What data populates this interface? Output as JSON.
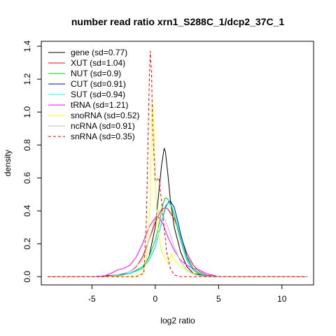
{
  "chart_data": {
    "type": "line",
    "title": "number read ratio xrn1_S288C_1/dcp2_37C_1",
    "xlabel": "log2 ratio",
    "ylabel": "density",
    "xlim": [
      -9,
      12.5
    ],
    "ylim": [
      -0.05,
      1.43
    ],
    "x_ticks": [
      -5,
      0,
      5,
      10
    ],
    "x_tick_labels": [
      "-5",
      "0",
      "5",
      "10"
    ],
    "y_ticks": [
      0.0,
      0.2,
      0.4,
      0.6,
      0.8,
      1.0,
      1.2,
      1.4
    ],
    "y_tick_labels": [
      "0.0",
      "0.2",
      "0.4",
      "0.6",
      "0.8",
      "1.0",
      "1.2",
      "1.4"
    ],
    "grid": false,
    "legend_position": "top-left",
    "curve_range": [
      -8.5,
      12.0
    ],
    "series": [
      {
        "name": "gene (sd=0.77)",
        "color": "#000000",
        "dash": "solid",
        "x": [
          -5,
          -4,
          -3,
          -2,
          -1,
          -0.5,
          0,
          0.5,
          0.7,
          0.8,
          1.0,
          1.2,
          1.5,
          2.0,
          2.5,
          3.0,
          4.0,
          5.0
        ],
        "y": [
          0,
          0.005,
          0.01,
          0.02,
          0.05,
          0.12,
          0.3,
          0.68,
          0.78,
          0.76,
          0.62,
          0.46,
          0.3,
          0.15,
          0.06,
          0.02,
          0.005,
          0
        ]
      },
      {
        "name": "XUT (sd=1.04)",
        "color": "#ff0000",
        "dash": "solid",
        "x": [
          -4,
          -3,
          -2,
          -1.5,
          -1,
          -0.5,
          0,
          0.5,
          0.8,
          1.0,
          1.5,
          2.0,
          2.5,
          3.0,
          3.5,
          4.0,
          5.0
        ],
        "y": [
          0,
          0.01,
          0.03,
          0.06,
          0.12,
          0.22,
          0.33,
          0.41,
          0.42,
          0.41,
          0.35,
          0.25,
          0.14,
          0.07,
          0.03,
          0.01,
          0
        ]
      },
      {
        "name": "NUT (sd=0.9)",
        "color": "#00cc00",
        "dash": "solid",
        "x": [
          -4,
          -3,
          -2,
          -1,
          -0.5,
          0,
          0.3,
          0.6,
          0.8,
          1.0,
          1.3,
          1.6,
          2.0,
          2.5,
          3.0,
          3.5,
          4.0,
          5.0
        ],
        "y": [
          0,
          0.005,
          0.02,
          0.06,
          0.12,
          0.22,
          0.32,
          0.44,
          0.48,
          0.47,
          0.42,
          0.34,
          0.22,
          0.1,
          0.04,
          0.015,
          0.005,
          0
        ]
      },
      {
        "name": "CUT (sd=0.91)",
        "color": "#0000cc",
        "dash": "solid",
        "x": [
          -4,
          -3,
          -2,
          -1,
          -0.5,
          0,
          0.4,
          0.8,
          1.0,
          1.2,
          1.5,
          1.8,
          2.0,
          2.5,
          3.0,
          3.5,
          4.0,
          5.0
        ],
        "y": [
          0,
          0.005,
          0.02,
          0.05,
          0.1,
          0.18,
          0.3,
          0.42,
          0.45,
          0.46,
          0.42,
          0.33,
          0.26,
          0.12,
          0.05,
          0.02,
          0.005,
          0
        ]
      },
      {
        "name": "SUT (sd=0.94)",
        "color": "#00ffff",
        "dash": "solid",
        "x": [
          -4,
          -3,
          -2,
          -1,
          -0.5,
          0,
          0.4,
          0.8,
          1.0,
          1.3,
          1.6,
          2.0,
          2.5,
          3.0,
          3.5,
          4.0,
          5.0
        ],
        "y": [
          0,
          0.005,
          0.02,
          0.05,
          0.1,
          0.18,
          0.3,
          0.43,
          0.45,
          0.43,
          0.36,
          0.24,
          0.11,
          0.05,
          0.02,
          0.005,
          0
        ]
      },
      {
        "name": "tRNA (sd=1.21)",
        "color": "#ff00ff",
        "dash": "solid",
        "x": [
          -5,
          -4,
          -3.5,
          -3,
          -2.5,
          -2,
          -1.5,
          -1,
          -0.5,
          0,
          0.3,
          0.6,
          1.0,
          1.5,
          2.0,
          2.5,
          3.0,
          3.5,
          4.0,
          4.5,
          5.0
        ],
        "y": [
          0,
          0.005,
          0.02,
          0.04,
          0.05,
          0.07,
          0.12,
          0.2,
          0.3,
          0.36,
          0.36,
          0.32,
          0.24,
          0.16,
          0.1,
          0.07,
          0.05,
          0.04,
          0.02,
          0.01,
          0
        ]
      },
      {
        "name": "snoRNA (sd=0.52)",
        "color": "#ffff00",
        "dash": "solid",
        "x": [
          -2.5,
          -1.5,
          -1.0,
          -0.7,
          -0.4,
          -0.3,
          -0.2,
          -0.1,
          0.0,
          0.2,
          0.5,
          1.0,
          1.3,
          1.5,
          2.0,
          2.3,
          2.6,
          3.0,
          3.5,
          4.0
        ],
        "y": [
          0,
          0.005,
          0.02,
          0.1,
          0.45,
          0.9,
          1.05,
          0.9,
          0.55,
          0.3,
          0.15,
          0.08,
          0.14,
          0.1,
          0.06,
          0.05,
          0.03,
          0.02,
          0.005,
          0
        ]
      },
      {
        "name": "ncRNA (sd=0.91)",
        "color": "#bebebe",
        "dash": "solid",
        "x": [
          -4,
          -3,
          -2,
          -1,
          -0.5,
          0,
          0.3,
          0.6,
          1.0,
          1.5,
          2.0,
          2.5,
          3.0,
          3.5,
          4.0
        ],
        "y": [
          0,
          0.01,
          0.03,
          0.1,
          0.22,
          0.36,
          0.4,
          0.38,
          0.3,
          0.18,
          0.09,
          0.04,
          0.015,
          0.005,
          0
        ]
      },
      {
        "name": "snRNA (sd=0.35)",
        "color": "#ff0000",
        "dash": "dashed",
        "x": [
          -1.5,
          -0.9,
          -0.7,
          -0.5,
          -0.4,
          -0.3,
          -0.2,
          0.0,
          0.3,
          0.5,
          0.7,
          0.9,
          1.2,
          1.5,
          2.0
        ],
        "y": [
          0,
          0.02,
          0.35,
          1.1,
          1.37,
          1.25,
          0.9,
          0.58,
          0.6,
          0.45,
          0.3,
          0.15,
          0.05,
          0.01,
          0
        ]
      }
    ]
  }
}
